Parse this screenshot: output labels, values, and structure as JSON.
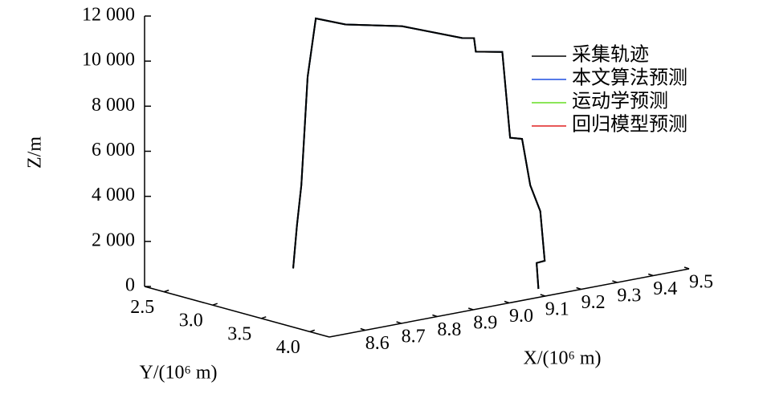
{
  "chart_data": {
    "type": "line3d",
    "xlabel": "X/(10⁶ m)",
    "ylabel": "Y/(10⁶ m)",
    "zlabel": "Z/m",
    "x": [
      8.744,
      8.75,
      8.757,
      8.767,
      8.78,
      8.827,
      8.916,
      9.011,
      9.03,
      9.033,
      9.075,
      9.087,
      9.106,
      9.119,
      9.135,
      9.142,
      9.129,
      9.132
    ],
    "y": [
      2.925,
      2.942,
      2.961,
      2.989,
      3.025,
      3.157,
      3.407,
      3.674,
      3.727,
      3.734,
      3.851,
      3.887,
      3.94,
      3.976,
      4.02,
      4.04,
      4.004,
      4.012
    ],
    "series": [
      {
        "name": "采集轨迹",
        "color": "#000000",
        "values": [
          800,
          2700,
          4500,
          9300,
          11900,
          11650,
          11600,
          11100,
          11100,
          10500,
          10500,
          6700,
          6650,
          4600,
          3450,
          1250,
          1150,
          0
        ]
      },
      {
        "name": "本文算法预测",
        "color": "#1f4fe0",
        "values": [
          800,
          2700,
          4500,
          9300,
          11900,
          11650,
          11600,
          11100,
          11100,
          10500,
          10500,
          6700,
          6650,
          4600,
          3450,
          1250,
          1150,
          0
        ]
      },
      {
        "name": "运动学预测",
        "color": "#66dd22",
        "values": [
          800,
          2700,
          4500,
          9300,
          11900,
          11650,
          11600,
          11100,
          11100,
          10500,
          10500,
          6700,
          6650,
          4600,
          3450,
          1250,
          1150,
          0
        ]
      },
      {
        "name": "回归模型预测",
        "color": "#e02020",
        "values": [
          800,
          2700,
          4500,
          9300,
          11900,
          11650,
          11600,
          11100,
          11100,
          10500,
          10500,
          6700,
          6650,
          4600,
          3450,
          1250,
          1150,
          0
        ]
      }
    ],
    "xlim": [
      8.5,
      9.5
    ],
    "xticks": [
      8.6,
      8.7,
      8.8,
      8.9,
      {
        "value": 9.0,
        "label": "9.0"
      },
      9.1,
      9.2,
      9.3,
      9.4,
      9.5
    ],
    "ylim": [
      2.3,
      4.2
    ],
    "yticks": [
      2.5,
      {
        "value": 3.0,
        "label": "3.0"
      },
      3.5,
      {
        "value": 4.0,
        "label": "4.0"
      }
    ],
    "zlim": [
      0,
      12000
    ],
    "zticks": [
      0,
      {
        "value": 2000,
        "label": "2 000"
      },
      {
        "value": 4000,
        "label": "4 000"
      },
      {
        "value": 6000,
        "label": "6 000"
      },
      {
        "value": 8000,
        "label": "8 000"
      },
      {
        "value": 10000,
        "label": "10 000"
      },
      {
        "value": 12000,
        "label": "12 000"
      }
    ],
    "legend": "upper right"
  }
}
